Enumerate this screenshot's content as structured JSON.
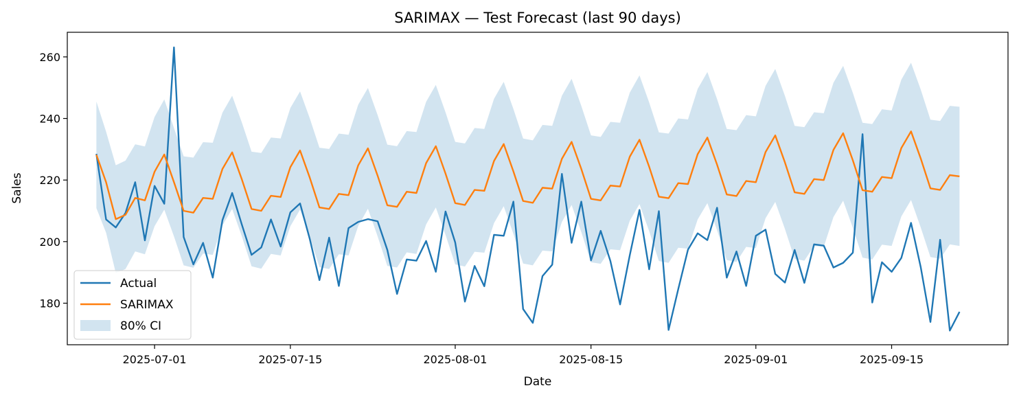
{
  "chart_data": {
    "type": "line",
    "title": "SARIMAX — Test Forecast (last 90 days)",
    "xlabel": "Date",
    "ylabel": "Sales",
    "x_start": "2025-06-25",
    "x_step_days": 1,
    "xlim": [
      "2025-06-22",
      "2025-09-27"
    ],
    "ylim": [
      166.5,
      268
    ],
    "xticks": [
      {
        "date": "2025-07-01",
        "label": "2025-07-01"
      },
      {
        "date": "2025-07-15",
        "label": "2025-07-15"
      },
      {
        "date": "2025-08-01",
        "label": "2025-08-01"
      },
      {
        "date": "2025-08-15",
        "label": "2025-08-15"
      },
      {
        "date": "2025-09-01",
        "label": "2025-09-01"
      },
      {
        "date": "2025-09-15",
        "label": "2025-09-15"
      }
    ],
    "yticks": [
      180,
      200,
      220,
      240,
      260
    ],
    "grid": false,
    "legend": "lower-left",
    "series": [
      {
        "name": "Actual",
        "color": "#1f77b4",
        "values": [
          228.5,
          207.2,
          204.6,
          209.3,
          219.3,
          200.4,
          218.1,
          212.3,
          263.1,
          201.5,
          192.6,
          199.6,
          188.3,
          207.0,
          215.8,
          205.5,
          195.7,
          198.1,
          207.2,
          198.4,
          209.5,
          212.4,
          200.9,
          187.5,
          201.3,
          185.6,
          204.4,
          206.4,
          207.3,
          206.6,
          197.3,
          183.0,
          194.2,
          193.8,
          200.2,
          190.2,
          209.8,
          199.7,
          180.5,
          192.1,
          185.5,
          202.2,
          201.9,
          213.0,
          178.1,
          173.6,
          188.8,
          192.5,
          222.0,
          199.6,
          213.0,
          193.9,
          203.5,
          193.7,
          179.6,
          195.6,
          210.3,
          191.0,
          209.9,
          171.3,
          184.6,
          197.4,
          202.7,
          200.5,
          211.0,
          188.3,
          196.8,
          185.6,
          201.9,
          203.9,
          189.5,
          186.7,
          197.3,
          186.6,
          199.1,
          198.7,
          191.6,
          193.1,
          196.4,
          234.9,
          180.2,
          193.3,
          190.2,
          194.7,
          206.1,
          191.7,
          173.9,
          200.6,
          171.1,
          177.2
        ]
      },
      {
        "name": "SARIMAX",
        "color": "#ff7f0e",
        "values": [
          228.2,
          219.3,
          207.3,
          208.7,
          214.2,
          213.4,
          222.7,
          228.3,
          219.3,
          210.0,
          209.4,
          214.2,
          213.9,
          223.6,
          229.0,
          220.2,
          210.6,
          210.0,
          214.9,
          214.5,
          224.2,
          229.6,
          220.8,
          211.1,
          210.6,
          215.5,
          215.1,
          224.8,
          230.3,
          221.4,
          211.8,
          211.3,
          216.2,
          215.8,
          225.5,
          231.0,
          222.1,
          212.5,
          211.9,
          216.8,
          216.5,
          226.2,
          231.7,
          222.8,
          213.2,
          212.6,
          217.5,
          217.2,
          226.9,
          232.4,
          223.6,
          213.9,
          213.4,
          218.2,
          217.9,
          227.6,
          233.1,
          224.3,
          214.6,
          214.1,
          219.0,
          218.7,
          228.4,
          233.8,
          225.0,
          215.3,
          214.8,
          219.7,
          219.3,
          229.1,
          234.5,
          225.7,
          216.0,
          215.5,
          220.3,
          220.0,
          229.8,
          235.2,
          226.4,
          216.7,
          216.2,
          221.0,
          220.6,
          230.4,
          235.8,
          227.0,
          217.3,
          216.8,
          221.6,
          221.2
        ]
      }
    ],
    "band": {
      "name": "80% CI",
      "color": "#1f77b4",
      "opacity": 0.2,
      "upper": [
        245.5,
        235.7,
        224.8,
        226.3,
        231.6,
        230.9,
        240.5,
        246.2,
        236.9,
        227.7,
        227.3,
        232.3,
        232.1,
        241.9,
        247.4,
        238.7,
        229.2,
        228.8,
        233.8,
        233.5,
        243.4,
        248.8,
        240.1,
        230.5,
        230.1,
        235.1,
        234.7,
        244.5,
        249.9,
        241.1,
        231.5,
        231.0,
        235.9,
        235.6,
        245.4,
        250.9,
        242.0,
        232.4,
        231.9,
        236.9,
        236.6,
        246.4,
        251.9,
        243.1,
        233.5,
        232.9,
        237.9,
        237.6,
        247.4,
        252.9,
        244.1,
        234.5,
        234.0,
        238.9,
        238.6,
        248.4,
        254.0,
        245.2,
        235.5,
        235.1,
        240.0,
        239.7,
        249.6,
        255.1,
        246.3,
        236.6,
        236.2,
        241.1,
        240.7,
        250.6,
        256.1,
        247.3,
        237.6,
        237.2,
        242.0,
        241.7,
        251.6,
        257.1,
        248.3,
        238.6,
        238.2,
        243.0,
        242.6,
        252.6,
        258.1,
        249.4,
        239.6,
        239.2,
        244.1,
        243.8
      ],
      "lower": [
        210.9,
        202.9,
        189.8,
        191.1,
        196.8,
        195.9,
        205.0,
        210.4,
        201.7,
        192.3,
        191.5,
        196.1,
        195.7,
        205.3,
        210.6,
        201.7,
        192.0,
        191.2,
        196.0,
        195.5,
        205.0,
        210.4,
        201.5,
        191.7,
        191.1,
        195.9,
        195.5,
        205.1,
        210.7,
        201.7,
        192.1,
        191.6,
        196.5,
        196.0,
        205.6,
        211.1,
        202.2,
        192.6,
        191.9,
        196.7,
        196.4,
        206.0,
        211.5,
        202.5,
        192.9,
        192.3,
        197.1,
        196.8,
        206.4,
        211.9,
        203.1,
        193.3,
        192.8,
        197.5,
        197.2,
        206.8,
        212.2,
        203.4,
        193.7,
        193.1,
        198.0,
        197.7,
        207.2,
        212.5,
        203.7,
        194.0,
        193.4,
        198.3,
        197.9,
        207.6,
        212.9,
        204.1,
        194.4,
        193.8,
        198.6,
        198.3,
        208.0,
        213.3,
        204.5,
        194.8,
        194.2,
        199.0,
        198.6,
        208.2,
        213.5,
        204.6,
        195.0,
        194.4,
        199.1,
        198.6
      ]
    }
  }
}
